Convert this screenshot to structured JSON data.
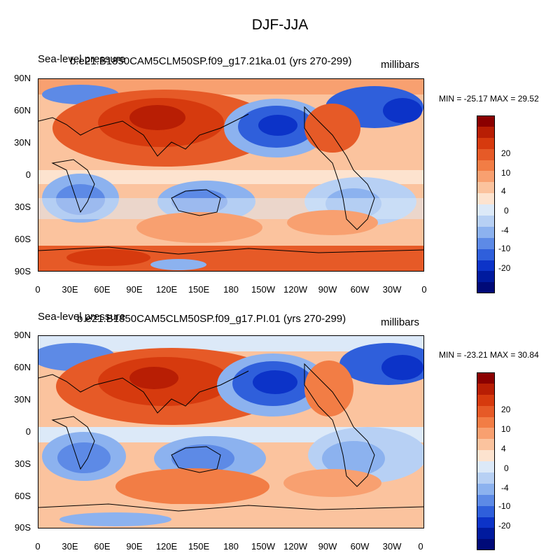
{
  "title": "DJF-JJA",
  "units": "millibars",
  "field_label": "Sea-level pressure",
  "panels": [
    {
      "case_name": "b.e21.B1850CAM5CLM50SP.f09_g17.21ka.01 (yrs 270-299)",
      "stats": "MIN = -25.17 MAX =  29.52"
    },
    {
      "case_name": "b.e21.B1850CAM5CLM50SP.f09_g17.PI.01 (yrs 270-299)",
      "stats": "MIN = -23.21 MAX =  30.84"
    }
  ],
  "lat_labels": [
    "90N",
    "60N",
    "30N",
    "0",
    "30S",
    "60S",
    "90S"
  ],
  "lon_labels": [
    "0",
    "30E",
    "60E",
    "90E",
    "120E",
    "150E",
    "180",
    "150W",
    "120W",
    "90W",
    "60W",
    "30W",
    "0"
  ],
  "colorbar": {
    "colors": [
      "#8b0000",
      "#b81e04",
      "#d63a0e",
      "#e65a27",
      "#f27d45",
      "#f8a070",
      "#fbc39e",
      "#fde3cf",
      "#dce9f8",
      "#b7d0f4",
      "#8cb2ef",
      "#5d8ae6",
      "#2f5fdb",
      "#0c33c8",
      "#001a9e",
      "#000a78"
    ],
    "labels": [
      "20",
      "10",
      "4",
      "0",
      "-4",
      "-10",
      "-20"
    ]
  },
  "icons": [
    "coastline-outline"
  ]
}
